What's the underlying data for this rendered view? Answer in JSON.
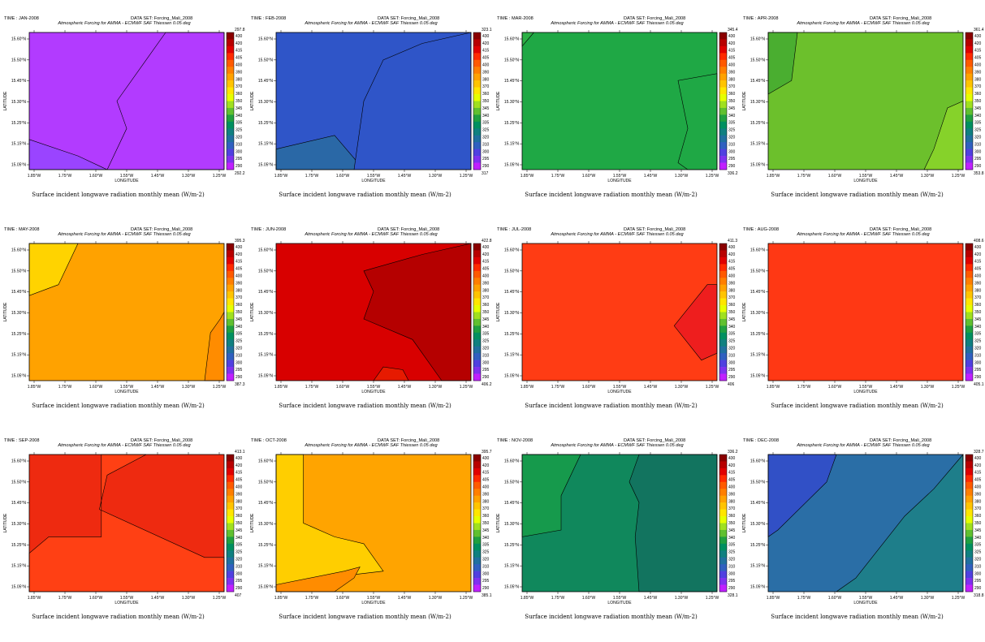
{
  "common": {
    "dataset_label": "DATA SET: Forcing_Mali_2008",
    "subtitle": "Atmospheric Forcing for AMMA - ECMWF SAF Thiessen 0.05 deg",
    "caption": "Surface incident longwave radiation monthly mean (W/m-2)",
    "xlabel": "LONGITUDE",
    "ylabel": "LATITUDE",
    "xticks": [
      "1.85°W",
      "1.75°W",
      "1.60°W",
      "1.55°W",
      "1.45°W",
      "1.30°W",
      "1.25°W"
    ],
    "yticks": [
      "15.60°N",
      "15.50°N",
      "15.45°N",
      "15.30°N",
      "15.25°N",
      "15.15°N",
      "15.05°N"
    ],
    "colorbar_levels": [
      "430",
      "420",
      "415",
      "405",
      "400",
      "390",
      "380",
      "370",
      "360",
      "350",
      "345",
      "340",
      "335",
      "325",
      "320",
      "310",
      "300",
      "295",
      "290"
    ],
    "colorbar_colors": [
      "#8a0000",
      "#b80000",
      "#e00000",
      "#ff2a00",
      "#ff5a00",
      "#ff7f00",
      "#ffa200",
      "#ffc400",
      "#ffe600",
      "#e6ff00",
      "#a0e020",
      "#60c030",
      "#20a040",
      "#009060",
      "#108080",
      "#2070a0",
      "#3060c0",
      "#5040e0",
      "#8030f0",
      "#c020ff"
    ]
  },
  "chart_data": [
    {
      "type": "heatmap",
      "title": "TIME : JAN-2008",
      "colorbar_max": "297.8",
      "colorbar_min": "292.2",
      "range": [
        292.2,
        297.8
      ],
      "xlabel": "LONGITUDE",
      "ylabel": "LATITUDE"
    },
    {
      "type": "heatmap",
      "title": "TIME : FEB-2008",
      "colorbar_max": "323.1",
      "colorbar_min": "317",
      "range": [
        317,
        323.1
      ],
      "xlabel": "LONGITUDE",
      "ylabel": "LATITUDE"
    },
    {
      "type": "heatmap",
      "title": "TIME : MAR-2008",
      "colorbar_max": "345.4",
      "colorbar_min": "336.2",
      "range": [
        336.2,
        345.4
      ],
      "xlabel": "LONGITUDE",
      "ylabel": "LATITUDE"
    },
    {
      "type": "heatmap",
      "title": "TIME : APR-2008",
      "colorbar_max": "361.4",
      "colorbar_min": "353.8",
      "range": [
        353.8,
        361.4
      ],
      "xlabel": "LONGITUDE",
      "ylabel": "LATITUDE"
    },
    {
      "type": "heatmap",
      "title": "TIME : MAY-2008",
      "colorbar_max": "395.3",
      "colorbar_min": "387.3",
      "range": [
        387.3,
        395.3
      ],
      "xlabel": "LONGITUDE",
      "ylabel": "LATITUDE"
    },
    {
      "type": "heatmap",
      "title": "TIME : JUN-2008",
      "colorbar_max": "422.8",
      "colorbar_min": "406.2",
      "range": [
        406.2,
        422.8
      ],
      "xlabel": "LONGITUDE",
      "ylabel": "LATITUDE"
    },
    {
      "type": "heatmap",
      "title": "TIME : JUL-2008",
      "colorbar_max": "411.3",
      "colorbar_min": "406",
      "range": [
        406,
        411.3
      ],
      "xlabel": "LONGITUDE",
      "ylabel": "LATITUDE"
    },
    {
      "type": "heatmap",
      "title": "TIME : AUG-2008",
      "colorbar_max": "408.6",
      "colorbar_min": "405.1",
      "range": [
        405.1,
        408.6
      ],
      "xlabel": "LONGITUDE",
      "ylabel": "LATITUDE"
    },
    {
      "type": "heatmap",
      "title": "TIME : SEP-2008",
      "colorbar_max": "413.1",
      "colorbar_min": "407",
      "range": [
        407,
        413.1
      ],
      "xlabel": "LONGITUDE",
      "ylabel": "LATITUDE"
    },
    {
      "type": "heatmap",
      "title": "TIME : OCT-2008",
      "colorbar_max": "395.7",
      "colorbar_min": "385.1",
      "range": [
        385.1,
        395.7
      ],
      "xlabel": "LONGITUDE",
      "ylabel": "LATITUDE"
    },
    {
      "type": "heatmap",
      "title": "TIME : NOV-2008",
      "colorbar_max": "336.2",
      "colorbar_min": "328.1",
      "range": [
        328.1,
        336.2
      ],
      "xlabel": "LONGITUDE",
      "ylabel": "LATITUDE"
    },
    {
      "type": "heatmap",
      "title": "TIME : DEC-2008",
      "colorbar_max": "328.7",
      "colorbar_min": "318.8",
      "range": [
        318.8,
        328.7
      ],
      "xlabel": "LONGITUDE",
      "ylabel": "LATITUDE"
    }
  ]
}
